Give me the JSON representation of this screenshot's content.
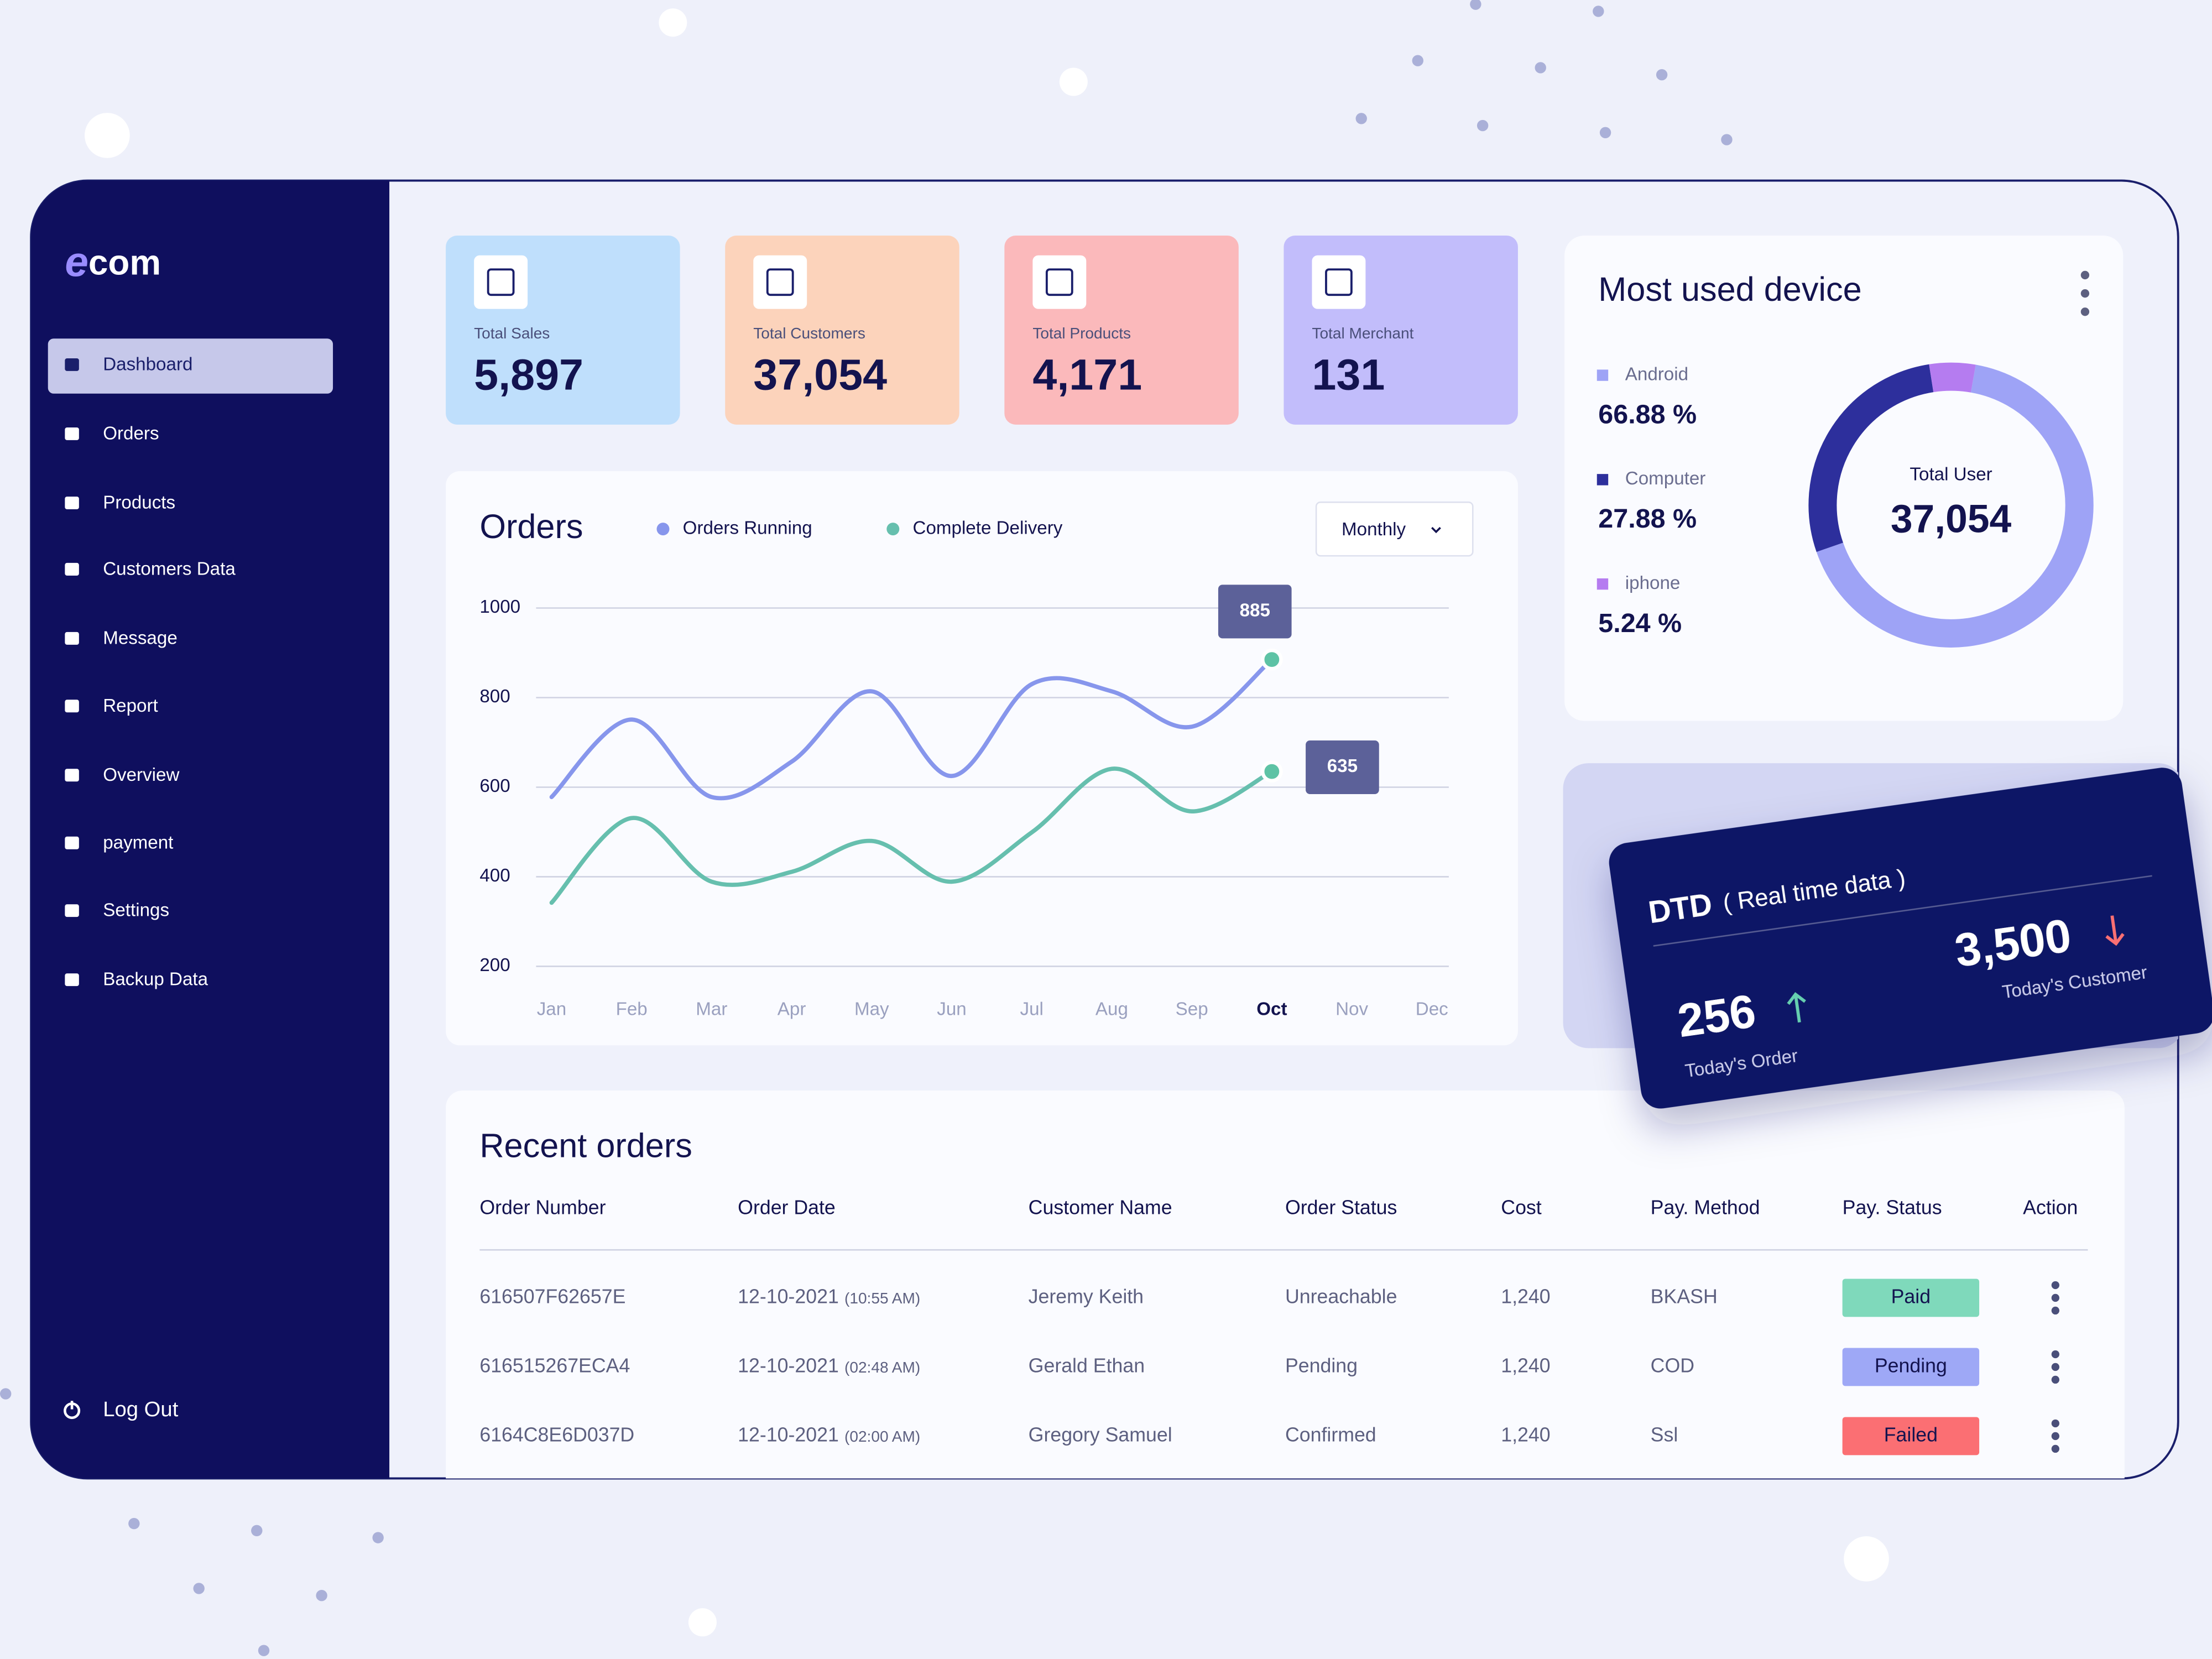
{
  "sidebar": {
    "logo": {
      "mark": "e",
      "text": "com"
    },
    "items": [
      "Dashboard",
      "Orders",
      "Products",
      "Customers Data",
      "Message",
      "Report",
      "Overview",
      "payment",
      "Settings",
      "Backup Data"
    ],
    "logout": "Log Out"
  },
  "stats": [
    {
      "label": "Total Sales",
      "value": "5,897",
      "color": "#bfdffc"
    },
    {
      "label": "Total Customers",
      "value": "37,054",
      "color": "#fcd3bb"
    },
    {
      "label": "Total Products",
      "value": "4,171",
      "color": "#fbb9bb"
    },
    {
      "label": "Total Merchant",
      "value": "131",
      "color": "#c2bdfb"
    }
  ],
  "device": {
    "title": "Most used device",
    "center_label": "Total User",
    "center_value": "37,054",
    "items": [
      {
        "name": "Android",
        "value": 66.88,
        "label": "66.88 %",
        "color": "#9ea3f6"
      },
      {
        "name": "Computer",
        "value": 27.88,
        "label": "27.88 %",
        "color": "#2d2f9c"
      },
      {
        "name": "iphone",
        "value": 5.24,
        "label": "5.24 %",
        "color": "#b57cf0"
      }
    ]
  },
  "orders_chart": {
    "type": "line",
    "title": "Orders",
    "dropdown": "Monthly",
    "categories": [
      "Jan",
      "Feb",
      "Mar",
      "Apr",
      "May",
      "Jun",
      "Jul",
      "Aug",
      "Sep",
      "Oct",
      "Nov",
      "Dec"
    ],
    "series": [
      {
        "name": "Orders Running",
        "color": "#8796ec",
        "values": [
          578,
          751,
          578,
          657,
          814,
          625,
          830,
          814,
          735,
          885,
          null,
          null
        ]
      },
      {
        "name": "Complete Delivery",
        "color": "#66bfae",
        "values": [
          342,
          531,
          389,
          411,
          480,
          389,
          499,
          641,
          546,
          635,
          null,
          null
        ]
      }
    ],
    "ylim": [
      200,
      1000
    ],
    "yticks": [
      200,
      400,
      600,
      800,
      1000
    ],
    "grid": true
  },
  "dtd": {
    "title": "DTD",
    "subtitle": "( Real time data )",
    "order_value": "256",
    "order_label": "Today's Order",
    "customer_value": "3,500",
    "customer_label": "Today's Customer"
  },
  "recent_orders": {
    "title": "Recent orders",
    "headers": [
      "Order Number",
      "Order Date",
      "Customer Name",
      "Order Status",
      "Cost",
      "Pay. Method",
      "Pay. Status",
      "Action"
    ],
    "rows": [
      {
        "order_number": "616507F62657E",
        "date": "12-10-2021",
        "time": "(10:55 AM)",
        "customer": "Jeremy Keith",
        "status": "Unreachable",
        "cost": "1,240",
        "method": "BKASH",
        "pay_status": "Paid",
        "pay_color": "#7fd9bb"
      },
      {
        "order_number": "616515267ECA4",
        "date": "12-10-2021",
        "time": "(02:48 AM)",
        "customer": "Gerald Ethan",
        "status": "Pending",
        "cost": "1,240",
        "method": "COD",
        "pay_status": "Pending",
        "pay_color": "#9ea8f6"
      },
      {
        "order_number": "6164C8E6D037D",
        "date": "12-10-2021",
        "time": "(02:00 AM)",
        "customer": "Gregory Samuel",
        "status": "Confirmed",
        "cost": "1,240",
        "method": "Ssl",
        "pay_status": "Failed",
        "pay_color": "#fb6f73"
      }
    ]
  }
}
